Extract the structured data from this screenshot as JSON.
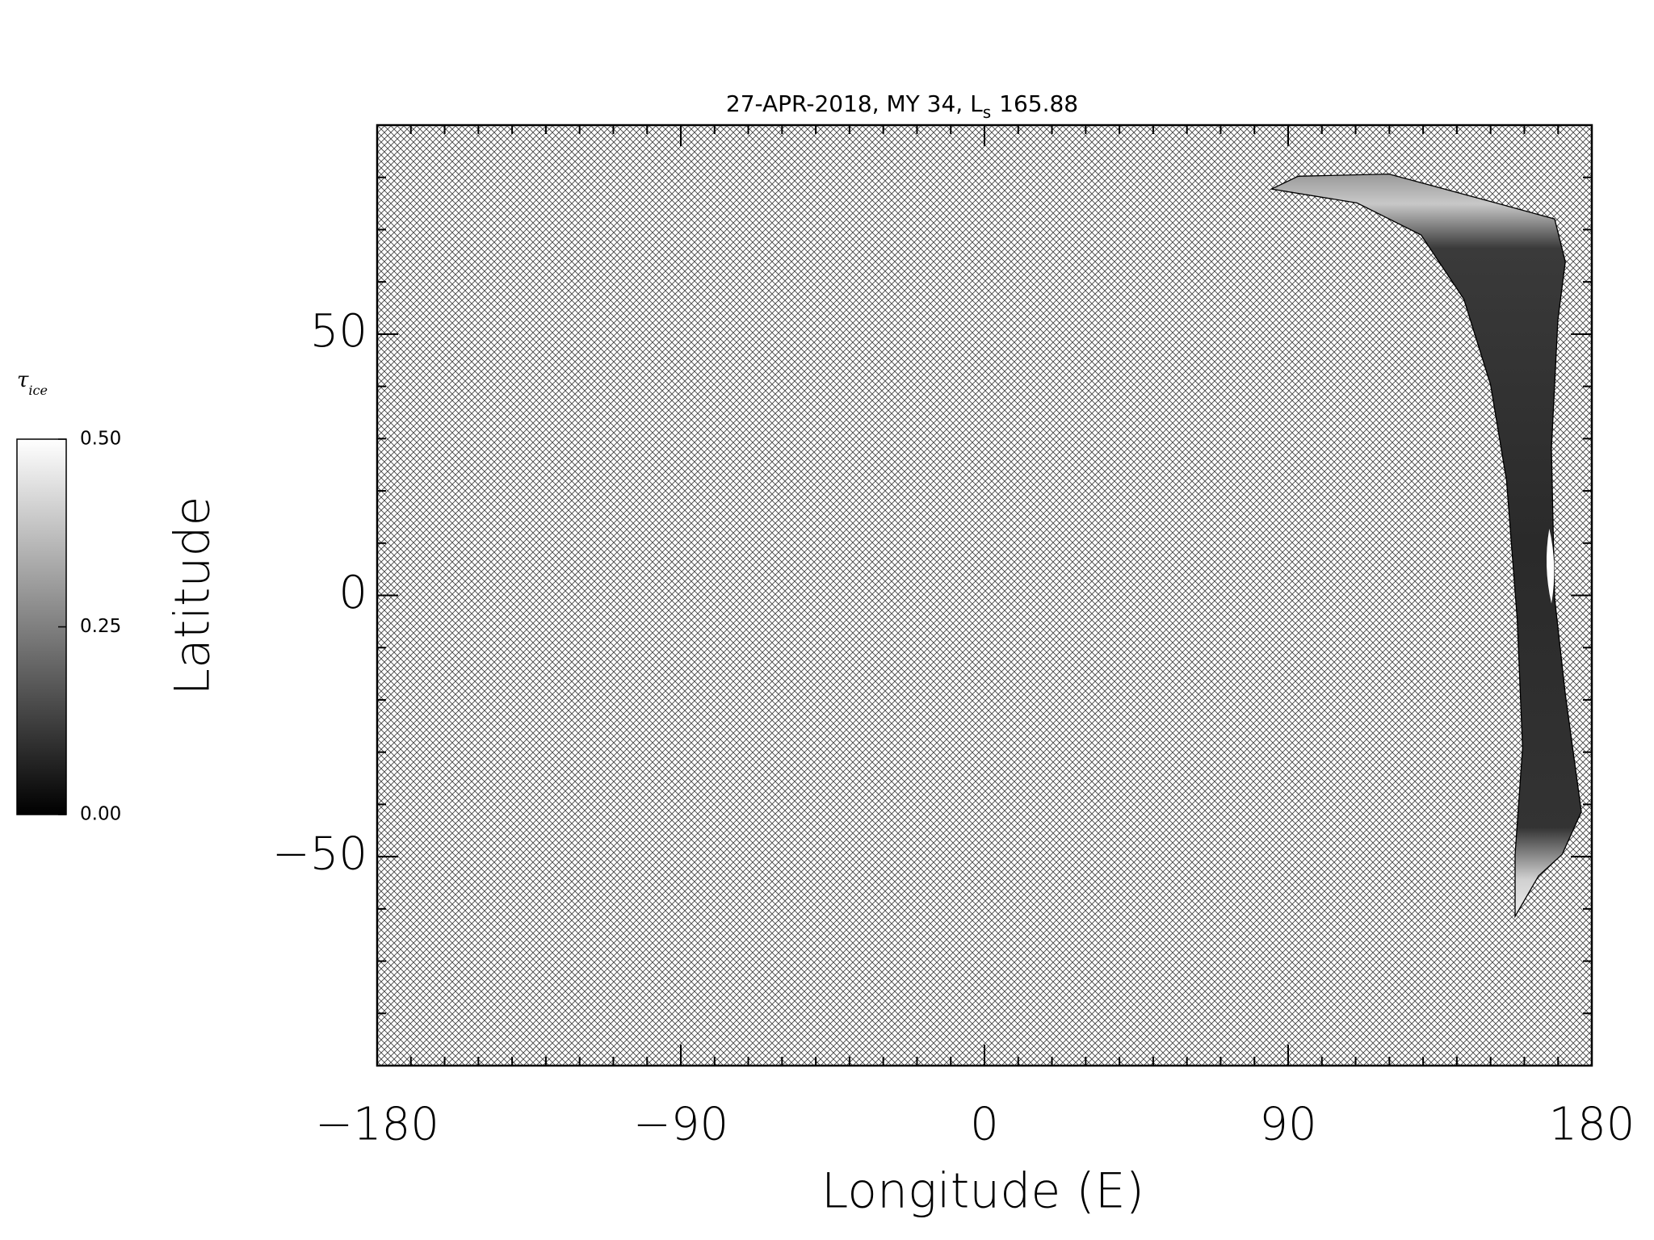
{
  "chart_data": {
    "type": "map",
    "title": "27-APR-2018, MY 34,  L",
    "title_subscript": "s",
    "title_suffix": "165.88",
    "xlabel": "Longitude (E)",
    "ylabel": "Latitude",
    "xlim": [
      -180,
      180
    ],
    "xticks": [
      {
        "value": -180,
        "label": "−180"
      },
      {
        "value": -90,
        "label": "−90"
      },
      0,
      90,
      180
    ],
    "xminorticks": [
      -180,
      -170,
      -160,
      -150,
      -140,
      -130,
      -120,
      -110,
      -100,
      -90,
      -80,
      -70,
      -60,
      -50,
      -40,
      -30,
      -20,
      -10,
      0,
      10,
      20,
      30,
      40,
      50,
      60,
      70,
      80,
      90,
      100,
      110,
      120,
      130,
      140,
      150,
      160,
      170,
      180
    ],
    "ylim": [
      -90,
      90
    ],
    "yticks": [
      {
        "value": -50,
        "label": "−50"
      },
      0,
      50
    ],
    "yminorticks": [
      -90,
      -80,
      -70,
      -60,
      -50,
      -40,
      -30,
      -20,
      -10,
      0,
      10,
      20,
      30,
      40,
      50,
      60,
      70,
      80,
      90
    ],
    "colorbar": {
      "label": "τ",
      "label_subscript": "ice",
      "lim": [
        0,
        0.5
      ],
      "ticks": [
        {
          "value": 0,
          "label": "0.00"
        },
        {
          "value": 0.25,
          "label": "0.25"
        },
        {
          "value": 0.5,
          "label": "0.50"
        }
      ]
    }
  }
}
